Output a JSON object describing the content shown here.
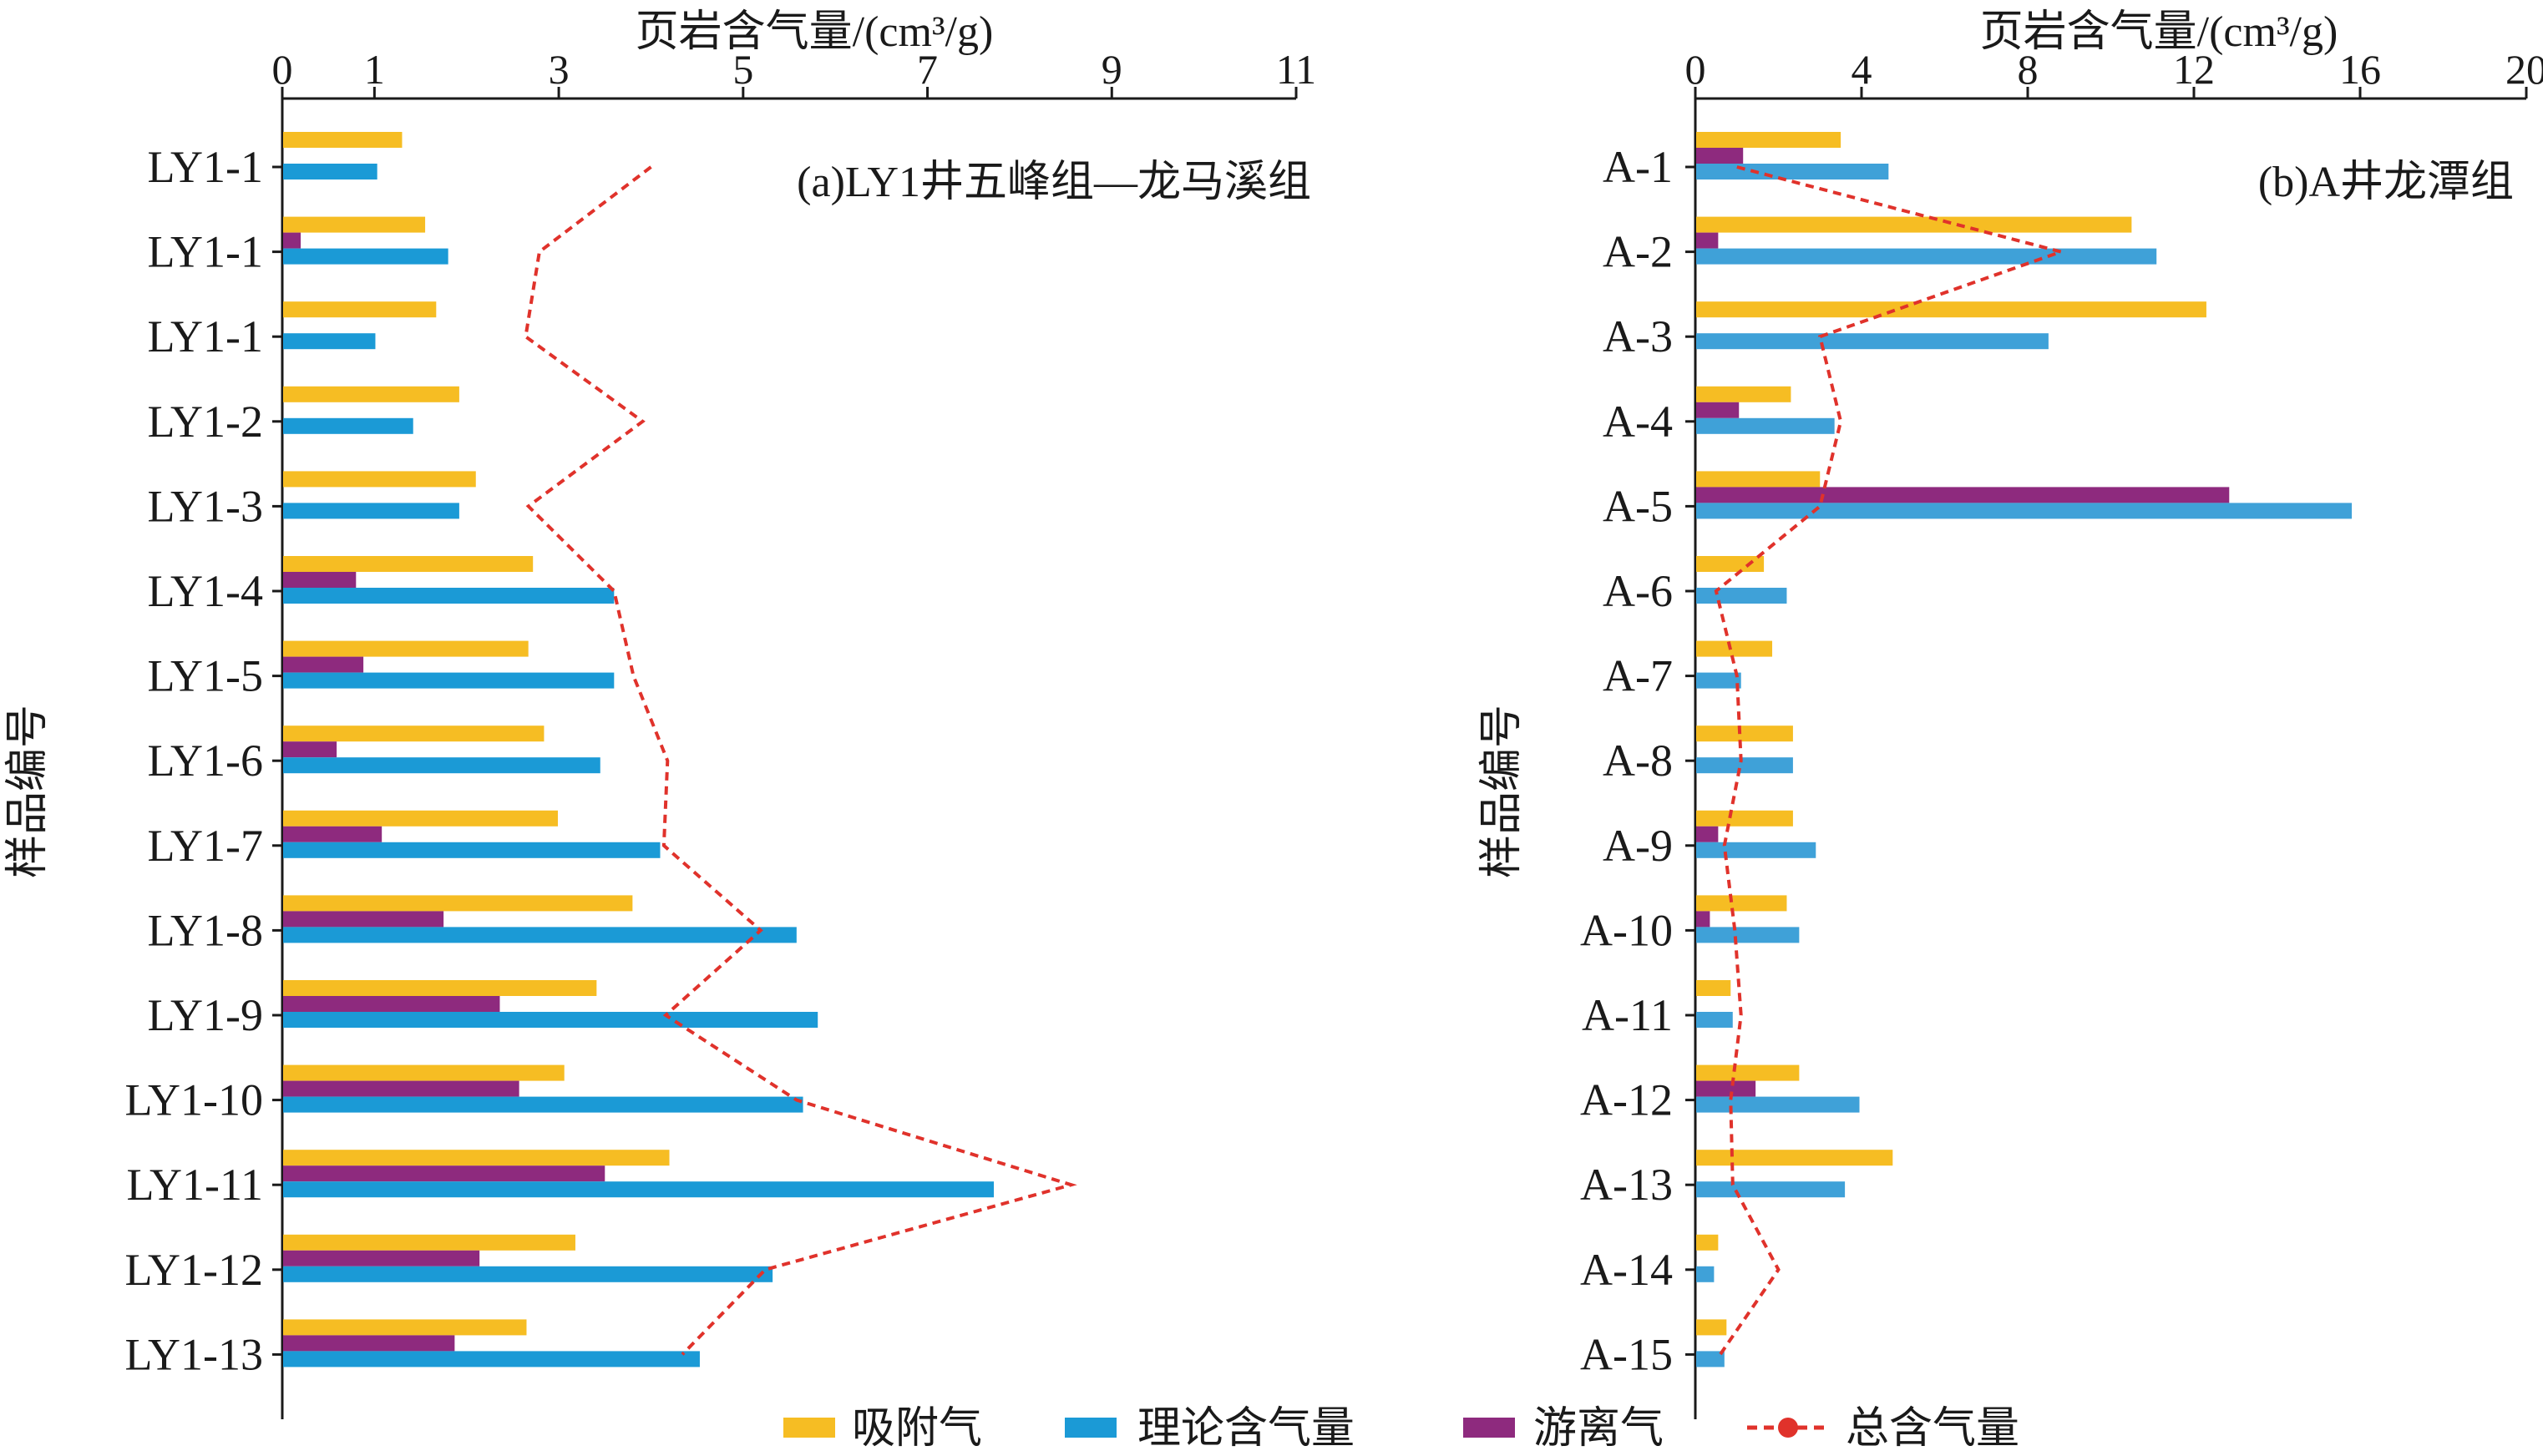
{
  "colors": {
    "adsorbed": "#f6bd23",
    "theoretical": "#1b9ad6",
    "theoretical_b": "#3fa1d8",
    "free": "#8e2a7e",
    "total": "#e0322b",
    "axis": "#1a1a1a"
  },
  "legend": {
    "adsorbed": "吸附气",
    "theoretical": "理论含气量",
    "free": "游离气",
    "total": "总含气量"
  },
  "chart_data": [
    {
      "type": "bar",
      "orientation": "horizontal",
      "title": "(a)LY1井五峰组—龙马溪组",
      "xlabel": "页岩含气量/(cm³/g)",
      "ylabel": "样品编号",
      "xlim": [
        0,
        11
      ],
      "xticks": [
        0,
        1,
        3,
        5,
        7,
        9,
        11
      ],
      "xtick_labels": [
        "0",
        "1",
        "3",
        "5",
        "7",
        "9",
        "11"
      ],
      "categories": [
        "LY1-1",
        "LY1-1",
        "LY1-1",
        "LY1-2",
        "LY1-3",
        "LY1-4",
        "LY1-5",
        "LY1-6",
        "LY1-7",
        "LY1-8",
        "LY1-9",
        "LY1-10",
        "LY1-11",
        "LY1-12",
        "LY1-13"
      ],
      "series": [
        {
          "key": "adsorbed",
          "name": "吸附气",
          "values": [
            1.3,
            1.55,
            1.67,
            1.92,
            2.1,
            2.72,
            2.67,
            2.84,
            2.99,
            3.8,
            3.41,
            3.06,
            4.2,
            3.18,
            2.65
          ]
        },
        {
          "key": "free",
          "name": "游离气",
          "values": [
            0,
            0.2,
            0,
            0,
            0,
            0.8,
            0.88,
            0.59,
            1.08,
            1.75,
            2.36,
            2.57,
            3.5,
            2.14,
            1.87
          ]
        },
        {
          "key": "theoretical",
          "name": "理论含气量",
          "values": [
            1.03,
            1.8,
            1.01,
            1.42,
            1.92,
            3.6,
            3.6,
            3.45,
            4.1,
            5.58,
            5.81,
            5.65,
            7.72,
            5.32,
            4.53
          ]
        },
        {
          "key": "total",
          "name": "总含气量",
          "style": "line",
          "values": [
            4.0,
            2.79,
            2.64,
            3.91,
            2.67,
            3.6,
            3.81,
            4.18,
            4.14,
            5.19,
            4.16,
            5.58,
            8.56,
            5.24,
            4.34
          ]
        }
      ]
    },
    {
      "type": "bar",
      "orientation": "horizontal",
      "title": "(b)A井龙潭组",
      "xlabel": "页岩含气量/(cm³/g)",
      "ylabel": "样品编号",
      "xlim": [
        0,
        20
      ],
      "xticks": [
        0,
        4,
        8,
        12,
        16,
        20
      ],
      "xtick_labels": [
        "0",
        "4",
        "8",
        "12",
        "16",
        "20"
      ],
      "categories": [
        "A-1",
        "A-2",
        "A-3",
        "A-4",
        "A-5",
        "A-6",
        "A-7",
        "A-8",
        "A-9",
        "A-10",
        "A-11",
        "A-12",
        "A-13",
        "A-14",
        "A-15"
      ],
      "series": [
        {
          "key": "adsorbed",
          "name": "吸附气",
          "values": [
            3.5,
            10.5,
            12.3,
            2.3,
            3.0,
            1.65,
            1.85,
            2.35,
            2.35,
            2.2,
            0.85,
            2.5,
            4.75,
            0.55,
            0.75
          ]
        },
        {
          "key": "free",
          "name": "游离气",
          "values": [
            1.15,
            0.55,
            0,
            1.05,
            12.85,
            0,
            0,
            0,
            0.55,
            0.35,
            0,
            1.45,
            0,
            0,
            0
          ]
        },
        {
          "key": "theoretical",
          "name": "理论含气量",
          "values": [
            4.65,
            11.1,
            8.5,
            3.35,
            15.8,
            2.2,
            1.1,
            2.35,
            2.9,
            2.5,
            0.9,
            3.95,
            3.6,
            0.45,
            0.7
          ]
        },
        {
          "key": "total",
          "name": "总含气量",
          "style": "line",
          "values": [
            1.0,
            8.8,
            3.0,
            3.5,
            3.0,
            0.5,
            1.0,
            1.1,
            0.7,
            0.95,
            1.1,
            0.85,
            0.9,
            2.0,
            0.6
          ]
        }
      ]
    }
  ]
}
